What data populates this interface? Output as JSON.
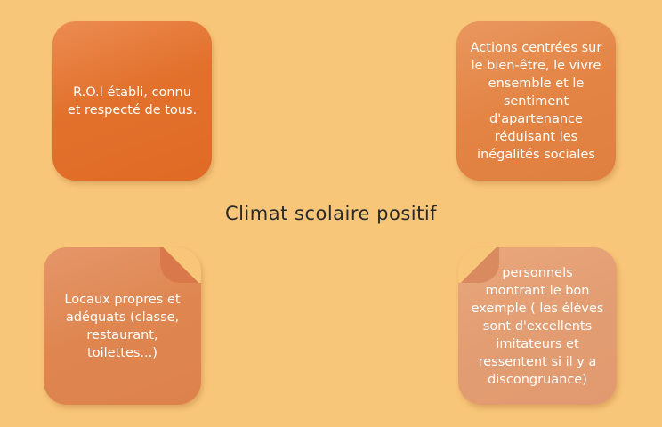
{
  "title": "Climat scolaire positif",
  "boxes": {
    "top_left": "R.O.I établi, connu\net respecté de tous.",
    "top_right": "Actions centrées sur\nle bien-être, le vivre\nensemble et le\nsentiment\nd'apartenance\nréduisant les\ninégalités sociales",
    "bottom_left": "Locaux propres et\nadéquats (classe,\nrestaurant,\ntoilettes...)",
    "bottom_right": "personnels\nmontrant le bon\nexemple ( les élèves\nsont d'excellents\nimitateurs et\nressentent si il y a\ndiscongruance)"
  },
  "colors": {
    "background": "#f8c679",
    "box_top_left": "#e2712c",
    "box_top_right": "#e38444",
    "box_bottom_left": "#df8650",
    "box_bottom_right": "#e39d72"
  }
}
